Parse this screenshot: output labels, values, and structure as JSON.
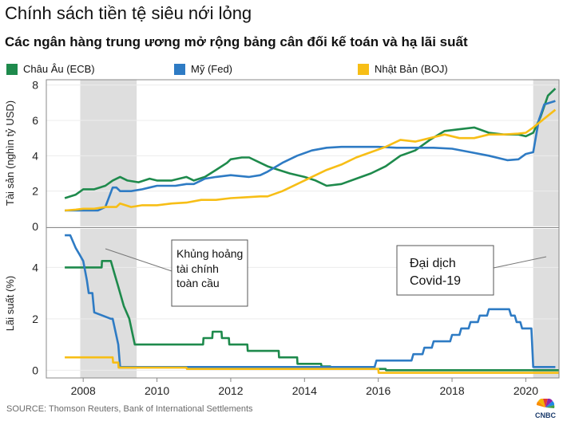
{
  "title": "Chính sách tiền tệ siêu nới lỏng",
  "subtitle": "Các ngân hàng trung ương mở rộng bảng cân đối kế toán và hạ lãi suất",
  "legend": [
    {
      "label": "Châu Âu (ECB)",
      "color": "#1e8a4c"
    },
    {
      "label": "Mỹ (Fed)",
      "color": "#2e7bc4"
    },
    {
      "label": "Nhật Bản (BOJ)",
      "color": "#f7be16"
    }
  ],
  "source": "SOURCE: Thomson Reuters, Bank of International Settlements",
  "logo_text": "CNBC",
  "annotations": {
    "gfc": [
      "Khủng hoảng",
      "tài chính",
      "toàn cầu"
    ],
    "covid": [
      "Đại dịch",
      "Covid-19"
    ]
  },
  "chart_data": [
    {
      "type": "line",
      "panel": "top",
      "ylabel": "Tài sản (nghìn tỷ USD)",
      "ylim": [
        0,
        8.3
      ],
      "yticks": [
        "0",
        "2",
        "4",
        "6",
        "8"
      ],
      "xlim": [
        2007.0,
        2020.9
      ],
      "shaded_periods": [
        [
          2007.92,
          2009.45
        ],
        [
          2020.2,
          2020.9
        ]
      ],
      "series": [
        {
          "name": "Châu Âu (ECB)",
          "color": "#1e8a4c",
          "x": [
            2007.5,
            2007.8,
            2008.0,
            2008.3,
            2008.6,
            2008.8,
            2009.0,
            2009.2,
            2009.5,
            2009.8,
            2010.0,
            2010.4,
            2010.8,
            2011.0,
            2011.3,
            2011.6,
            2011.9,
            2012.0,
            2012.3,
            2012.5,
            2012.8,
            2013.0,
            2013.3,
            2013.6,
            2014.0,
            2014.3,
            2014.6,
            2015.0,
            2015.4,
            2015.8,
            2016.2,
            2016.6,
            2017.0,
            2017.4,
            2017.8,
            2018.2,
            2018.6,
            2019.0,
            2019.4,
            2019.8,
            2020.0,
            2020.2,
            2020.4,
            2020.6,
            2020.8
          ],
          "y": [
            1.6,
            1.8,
            2.1,
            2.1,
            2.3,
            2.6,
            2.8,
            2.6,
            2.5,
            2.7,
            2.6,
            2.6,
            2.8,
            2.6,
            2.8,
            3.2,
            3.6,
            3.8,
            3.9,
            3.9,
            3.6,
            3.4,
            3.2,
            3.0,
            2.8,
            2.6,
            2.3,
            2.4,
            2.7,
            3.0,
            3.4,
            4.0,
            4.3,
            4.9,
            5.4,
            5.5,
            5.6,
            5.3,
            5.2,
            5.2,
            5.1,
            5.3,
            6.2,
            7.4,
            7.8
          ]
        },
        {
          "name": "Mỹ (Fed)",
          "color": "#2e7bc4",
          "x": [
            2007.5,
            2007.8,
            2008.0,
            2008.4,
            2008.6,
            2008.8,
            2008.9,
            2009.0,
            2009.3,
            2009.6,
            2009.8,
            2010.0,
            2010.5,
            2010.8,
            2011.0,
            2011.3,
            2011.6,
            2012.0,
            2012.5,
            2012.8,
            2013.0,
            2013.4,
            2013.8,
            2014.2,
            2014.6,
            2015.0,
            2015.5,
            2016.0,
            2016.5,
            2017.0,
            2017.5,
            2018.0,
            2018.5,
            2019.0,
            2019.5,
            2019.8,
            2020.0,
            2020.2,
            2020.35,
            2020.5,
            2020.8
          ],
          "y": [
            0.9,
            0.9,
            0.9,
            0.9,
            1.1,
            2.2,
            2.2,
            2.0,
            2.0,
            2.1,
            2.2,
            2.3,
            2.3,
            2.4,
            2.4,
            2.7,
            2.8,
            2.9,
            2.8,
            2.9,
            3.1,
            3.6,
            4.0,
            4.3,
            4.45,
            4.5,
            4.5,
            4.5,
            4.45,
            4.45,
            4.45,
            4.4,
            4.2,
            4.0,
            3.75,
            3.8,
            4.1,
            4.2,
            6.0,
            6.9,
            7.1
          ]
        },
        {
          "name": "Nhật Bản (BOJ)",
          "color": "#f7be16",
          "x": [
            2007.5,
            2007.8,
            2008.0,
            2008.3,
            2008.6,
            2008.9,
            2009.0,
            2009.3,
            2009.6,
            2010.0,
            2010.4,
            2010.8,
            2011.2,
            2011.6,
            2012.0,
            2012.4,
            2012.8,
            2013.0,
            2013.4,
            2013.8,
            2014.2,
            2014.6,
            2015.0,
            2015.4,
            2015.8,
            2016.2,
            2016.6,
            2017.0,
            2017.4,
            2017.8,
            2018.2,
            2018.6,
            2019.0,
            2019.4,
            2019.8,
            2020.0,
            2020.2,
            2020.5,
            2020.8
          ],
          "y": [
            0.9,
            0.95,
            1.0,
            1.0,
            1.1,
            1.1,
            1.3,
            1.1,
            1.2,
            1.2,
            1.3,
            1.35,
            1.5,
            1.5,
            1.6,
            1.65,
            1.7,
            1.7,
            2.0,
            2.4,
            2.8,
            3.2,
            3.5,
            3.9,
            4.2,
            4.5,
            4.9,
            4.8,
            5.0,
            5.2,
            5.0,
            5.0,
            5.2,
            5.2,
            5.25,
            5.3,
            5.6,
            6.1,
            6.6
          ]
        }
      ]
    },
    {
      "type": "line",
      "panel": "bottom",
      "ylabel": "Lãi suất (%)",
      "xlabel": "",
      "ylim": [
        -0.3,
        5.5
      ],
      "yticks": [
        "0",
        "2",
        "4"
      ],
      "xticks": [
        "2008",
        "2010",
        "2012",
        "2014",
        "2016",
        "2018",
        "2020"
      ],
      "xlim": [
        2007.0,
        2020.9
      ],
      "shaded_periods": [
        [
          2007.92,
          2009.45
        ],
        [
          2020.2,
          2020.9
        ]
      ],
      "series": [
        {
          "name": "Châu Âu (ECB)",
          "color": "#1e8a4c",
          "x": [
            2007.5,
            2008.5,
            2008.51,
            2008.75,
            2008.85,
            2008.95,
            2009.1,
            2009.25,
            2009.4,
            2011.25,
            2011.26,
            2011.5,
            2011.51,
            2011.75,
            2011.76,
            2011.95,
            2011.96,
            2012.45,
            2012.46,
            2013.3,
            2013.31,
            2013.8,
            2013.81,
            2014.45,
            2014.46,
            2014.7,
            2014.71,
            2016.2,
            2016.21,
            2020.9
          ],
          "y": [
            4.0,
            4.0,
            4.25,
            4.25,
            3.75,
            3.25,
            2.5,
            2.0,
            1.0,
            1.0,
            1.25,
            1.25,
            1.5,
            1.5,
            1.25,
            1.25,
            1.0,
            1.0,
            0.75,
            0.75,
            0.5,
            0.5,
            0.25,
            0.25,
            0.15,
            0.15,
            0.05,
            0.05,
            0.0,
            0.0
          ]
        },
        {
          "name": "Mỹ (Fed)",
          "color": "#2e7bc4",
          "x": [
            2007.5,
            2007.65,
            2007.8,
            2007.9,
            2008.0,
            2008.1,
            2008.15,
            2008.25,
            2008.3,
            2008.75,
            2008.8,
            2008.95,
            2009.0,
            2015.9,
            2015.95,
            2016.9,
            2016.95,
            2017.2,
            2017.25,
            2017.45,
            2017.5,
            2017.95,
            2018.0,
            2018.2,
            2018.25,
            2018.45,
            2018.5,
            2018.7,
            2018.75,
            2018.95,
            2019.0,
            2019.55,
            2019.6,
            2019.7,
            2019.75,
            2019.85,
            2019.9,
            2020.15,
            2020.2,
            2020.8
          ],
          "y": [
            5.25,
            5.25,
            4.75,
            4.5,
            4.25,
            3.5,
            3.0,
            3.0,
            2.25,
            2.0,
            2.0,
            1.0,
            0.125,
            0.125,
            0.375,
            0.375,
            0.625,
            0.625,
            0.875,
            0.875,
            1.125,
            1.125,
            1.375,
            1.375,
            1.625,
            1.625,
            1.875,
            1.875,
            2.125,
            2.125,
            2.375,
            2.375,
            2.125,
            2.125,
            1.875,
            1.875,
            1.625,
            1.625,
            0.125,
            0.125
          ]
        },
        {
          "name": "Nhật Bản (BOJ)",
          "color": "#f7be16",
          "x": [
            2007.5,
            2008.8,
            2008.81,
            2008.95,
            2008.96,
            2010.8,
            2010.81,
            2016.0,
            2016.01,
            2020.9
          ],
          "y": [
            0.5,
            0.5,
            0.3,
            0.3,
            0.1,
            0.1,
            0.05,
            0.05,
            -0.1,
            -0.1
          ]
        }
      ]
    }
  ]
}
